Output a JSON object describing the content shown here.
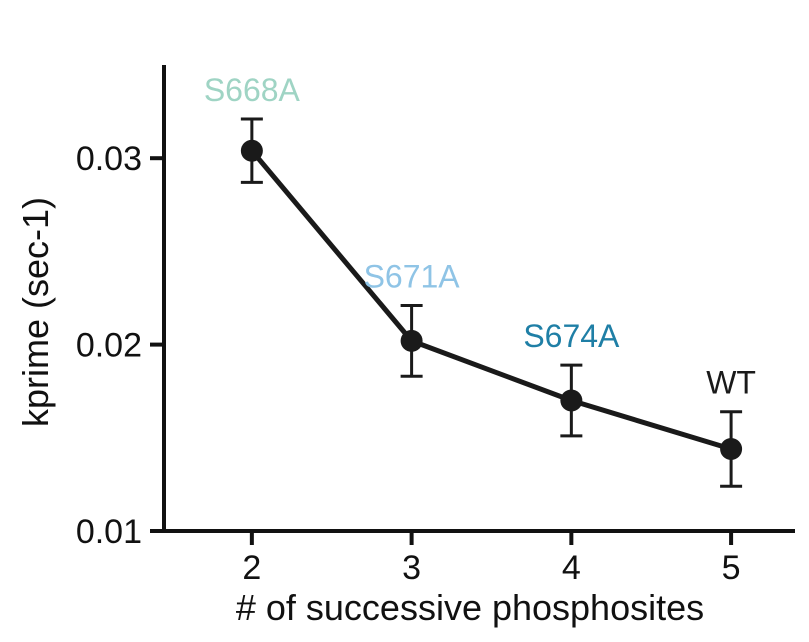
{
  "chart_data": {
    "type": "line",
    "title": "",
    "xlabel": "# of successive phosphosites",
    "ylabel": "kprime (sec-1)",
    "x": [
      2,
      3,
      4,
      5
    ],
    "xticks": [
      "2",
      "3",
      "4",
      "5"
    ],
    "xlim": [
      1.45,
      5.4
    ],
    "ylim": [
      0.01,
      0.035
    ],
    "yticks": [
      "0.01",
      "0.02",
      "0.03"
    ],
    "ytick_values": [
      0.01,
      0.02,
      0.03
    ],
    "grid": false,
    "series": [
      {
        "values": [
          0.0304,
          0.0202,
          0.017,
          0.0144
        ],
        "error": [
          0.0017,
          0.0019,
          0.0019,
          0.002
        ],
        "color": "#1a1a1a"
      }
    ],
    "annotations": [
      {
        "text": "S668A",
        "x": 2,
        "color": "#9fd4c4"
      },
      {
        "text": "S671A",
        "x": 3,
        "color": "#8fc4e6"
      },
      {
        "text": "S674A",
        "x": 4,
        "color": "#1f7fa6"
      },
      {
        "text": "WT",
        "x": 5,
        "color": "#1a1a1a"
      }
    ]
  }
}
